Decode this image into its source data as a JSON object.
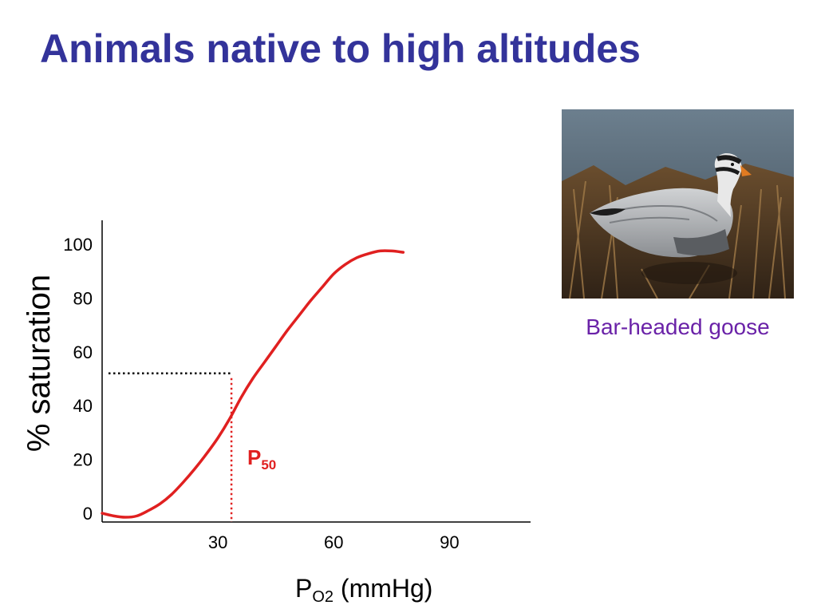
{
  "slide": {
    "title": "Animals native to high altitudes",
    "photo_caption": "Bar-headed goose"
  },
  "chart_data": {
    "type": "line",
    "title": "",
    "xlabel": {
      "main": "P",
      "sub": "O2",
      "rest": " (mmHg)"
    },
    "ylabel": "% saturation",
    "x_ticks": [
      30,
      60,
      90
    ],
    "y_ticks": [
      0,
      20,
      40,
      60,
      80,
      100
    ],
    "xlim": [
      0,
      111
    ],
    "ylim": [
      0,
      100
    ],
    "grid": false,
    "series": [
      {
        "color": "#e02020",
        "x": [
          0,
          3,
          6,
          9,
          12,
          15,
          18,
          21,
          24,
          27,
          30,
          33,
          36,
          39,
          42,
          45,
          48,
          51,
          54,
          57,
          60,
          63,
          66,
          69,
          72,
          75,
          78
        ],
        "y": [
          0,
          -1,
          -1.5,
          -1,
          1,
          3.5,
          7,
          11.5,
          16.5,
          22,
          28,
          35,
          43,
          50,
          56,
          62,
          68,
          73.5,
          79,
          84,
          89,
          92.5,
          95,
          96.5,
          97.5,
          97.5,
          97
        ]
      }
    ],
    "p50": {
      "x": 33.5,
      "y": 52,
      "label_main": "P",
      "label_sub": "50",
      "color": "#e02020"
    }
  }
}
